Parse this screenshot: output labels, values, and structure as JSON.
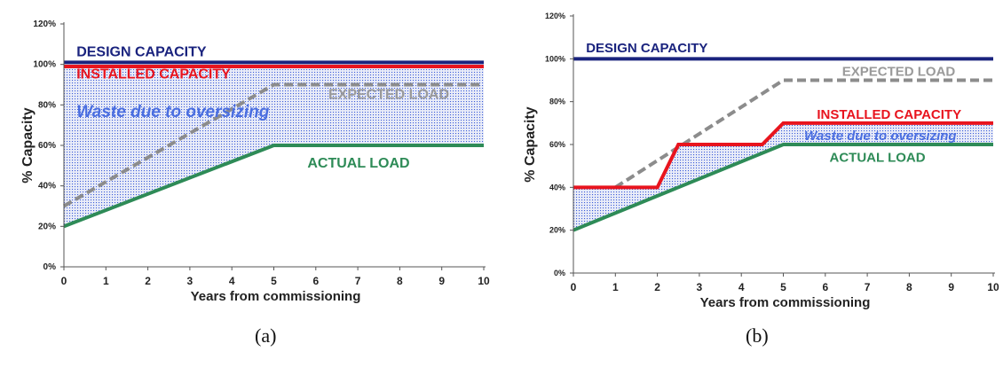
{
  "chart_data": [
    {
      "type": "line",
      "panel_label": "(a)",
      "xlabel": "Years from commissioning",
      "ylabel": "% Capacity",
      "xlim": [
        0,
        10
      ],
      "ylim": [
        0,
        120
      ],
      "xticks": [
        0,
        1,
        2,
        3,
        4,
        5,
        6,
        7,
        8,
        9,
        10
      ],
      "yticks": [
        0,
        20,
        40,
        60,
        80,
        100,
        120
      ],
      "ytick_format": "percent",
      "grid": false,
      "series": [
        {
          "name": "DESIGN CAPACITY",
          "color": "#1a237e",
          "style": "solid",
          "x": [
            0,
            10
          ],
          "y": [
            101,
            101
          ]
        },
        {
          "name": "INSTALLED CAPACITY",
          "color": "#e8141e",
          "style": "solid",
          "x": [
            0,
            10
          ],
          "y": [
            99,
            99
          ]
        },
        {
          "name": "EXPECTED LOAD",
          "color": "#8c8c8c",
          "style": "dashed",
          "x": [
            0,
            5,
            10
          ],
          "y": [
            30,
            90,
            90
          ]
        },
        {
          "name": "ACTUAL LOAD",
          "color": "#2e8b57",
          "style": "solid",
          "x": [
            0,
            5,
            10
          ],
          "y": [
            20,
            60,
            60
          ]
        }
      ],
      "shaded_region": {
        "label": "Waste due to oversizing",
        "between": [
          "ACTUAL LOAD",
          "INSTALLED CAPACITY"
        ],
        "color": "#3a5bd9"
      },
      "annotations": [
        {
          "text": "DESIGN CAPACITY",
          "x": 0.3,
          "y": 104,
          "color": "#1a237e"
        },
        {
          "text": "INSTALLED CAPACITY",
          "x": 0.3,
          "y": 93,
          "color": "#e8141e"
        },
        {
          "text": "EXPECTED LOAD",
          "x": 6.3,
          "y": 83,
          "color": "#9a9a9a"
        },
        {
          "text": "Waste due to oversizing",
          "x": 0.3,
          "y": 74,
          "color": "#4a6ee0",
          "italic": true
        },
        {
          "text": "ACTUAL LOAD",
          "x": 5.8,
          "y": 49,
          "color": "#2e8b57"
        }
      ]
    },
    {
      "type": "line",
      "panel_label": "(b)",
      "xlabel": "Years from commissioning",
      "ylabel": "% Capacity",
      "xlim": [
        0,
        10
      ],
      "ylim": [
        0,
        120
      ],
      "xticks": [
        0,
        1,
        2,
        3,
        4,
        5,
        6,
        7,
        8,
        9,
        10
      ],
      "yticks": [
        0,
        20,
        40,
        60,
        80,
        100,
        120
      ],
      "ytick_format": "percent",
      "grid": false,
      "series": [
        {
          "name": "DESIGN CAPACITY",
          "color": "#1a237e",
          "style": "solid",
          "x": [
            0,
            10
          ],
          "y": [
            100,
            100
          ]
        },
        {
          "name": "EXPECTED LOAD",
          "color": "#8c8c8c",
          "style": "dashed",
          "x": [
            1,
            5,
            10
          ],
          "y": [
            40,
            90,
            90
          ]
        },
        {
          "name": "INSTALLED CAPACITY",
          "color": "#e8141e",
          "style": "solid",
          "x": [
            0,
            2,
            2.5,
            4.5,
            5,
            10
          ],
          "y": [
            40,
            40,
            60,
            60,
            70,
            70
          ]
        },
        {
          "name": "ACTUAL LOAD",
          "color": "#2e8b57",
          "style": "solid",
          "x": [
            0,
            5,
            10
          ],
          "y": [
            20,
            60,
            60
          ]
        }
      ],
      "shaded_region": {
        "label": "Waste due to oversizing",
        "between": [
          "ACTUAL LOAD",
          "INSTALLED CAPACITY"
        ],
        "color": "#3a5bd9"
      },
      "annotations": [
        {
          "text": "DESIGN CAPACITY",
          "x": 0.3,
          "y": 103,
          "color": "#1a237e"
        },
        {
          "text": "EXPECTED LOAD",
          "x": 6.4,
          "y": 92,
          "color": "#9a9a9a"
        },
        {
          "text": "INSTALLED CAPACITY",
          "x": 5.8,
          "y": 72,
          "color": "#e8141e"
        },
        {
          "text": "Waste due to oversizing",
          "x": 5.5,
          "y": 62,
          "color": "#4a6ee0",
          "italic": true
        },
        {
          "text": "ACTUAL LOAD",
          "x": 6.1,
          "y": 52,
          "color": "#2e8b57"
        }
      ]
    }
  ]
}
